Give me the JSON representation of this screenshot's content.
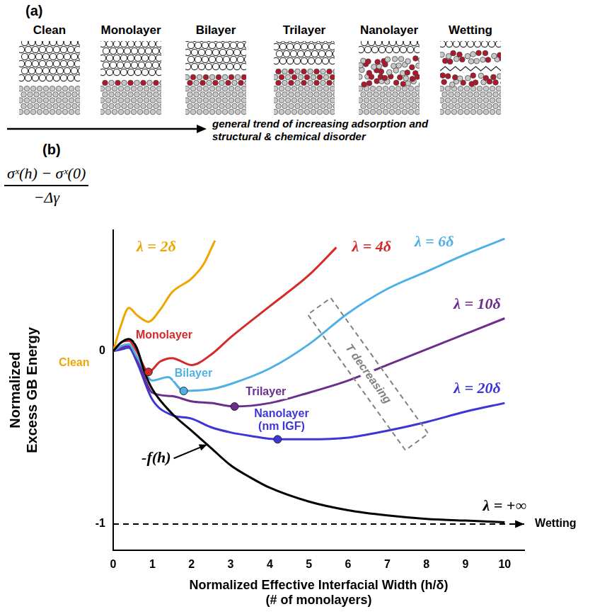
{
  "panel_a": {
    "label": "(a)",
    "columns": [
      "Clean",
      "Monolayer",
      "Bilayer",
      "Trilayer",
      "Nanolayer",
      "Wetting"
    ],
    "arrow_text": [
      "general trend of increasing adsorption and",
      "structural & chemical disorder"
    ]
  },
  "panel_b": {
    "label": "(b)",
    "y_formula": {
      "numerator": "σˣ(h) − σˣ(0)",
      "denominator": "−Δγ"
    }
  },
  "chart_data": {
    "type": "line",
    "xlabel": [
      "Normalized Effective Interfacial Width (h/δ)",
      "(# of monolayers)"
    ],
    "ylabel": [
      "Normalized",
      "Excess GB Energy"
    ],
    "xlim": [
      0,
      10.5
    ],
    "xticks": [
      0,
      1,
      2,
      3,
      4,
      5,
      6,
      7,
      8,
      9,
      10
    ],
    "ylim": [
      -1.15,
      0.7
    ],
    "yticks": [
      -1,
      0
    ],
    "grid": false,
    "series": [
      {
        "name": "-f(h)",
        "color": "#000000",
        "line_style": "solid",
        "marker": "none",
        "x": [
          0,
          0.2,
          0.4,
          0.6,
          0.8,
          1,
          1.5,
          2,
          2.5,
          3,
          3.5,
          4,
          5,
          6,
          7,
          8,
          9,
          10
        ],
        "values": [
          0,
          0.05,
          0.07,
          0.02,
          -0.12,
          -0.22,
          -0.36,
          -0.46,
          -0.56,
          -0.66,
          -0.73,
          -0.79,
          -0.87,
          -0.92,
          -0.95,
          -0.97,
          -0.98,
          -0.99
        ],
        "label_at": {
          "x": 1.1,
          "y": -0.62
        },
        "label_arrow_to": {
          "x": 2.4,
          "y": -0.54
        }
      },
      {
        "name": "λ = 2δ",
        "color": "#f0a500",
        "line_style": "solid",
        "marker": "none",
        "x": [
          0,
          0.2,
          0.4,
          0.6,
          0.9,
          1.2,
          1.5,
          2,
          2.3,
          2.6
        ],
        "values": [
          0,
          0.15,
          0.25,
          0.21,
          0.17,
          0.24,
          0.34,
          0.42,
          0.5,
          0.64
        ],
        "label_at": {
          "x": 1.1,
          "y": 0.6
        }
      },
      {
        "name": "λ = 4δ",
        "color": "#d42a2a",
        "line_style": "solid",
        "marker": "none",
        "x": [
          0,
          0.2,
          0.4,
          0.6,
          0.9,
          1.2,
          1.5,
          2,
          2.5,
          3,
          4,
          5,
          5.7
        ],
        "values": [
          0,
          0.05,
          0.06,
          0,
          -0.12,
          -0.06,
          -0.04,
          -0.08,
          -0.02,
          0.08,
          0.26,
          0.44,
          0.6
        ],
        "label_at": {
          "x": 6.6,
          "y": 0.6
        }
      },
      {
        "name": "λ = 6δ",
        "color": "#4fb0e6",
        "line_style": "solid",
        "marker": "none",
        "x": [
          0,
          0.2,
          0.4,
          0.6,
          1,
          1.4,
          1.8,
          2.5,
          3,
          4,
          5,
          6,
          7,
          8,
          9,
          10
        ],
        "values": [
          0,
          0.03,
          0.04,
          -0.03,
          -0.17,
          -0.15,
          -0.23,
          -0.22,
          -0.19,
          -0.1,
          0.04,
          0.22,
          0.36,
          0.46,
          0.56,
          0.65
        ],
        "label_at": {
          "x": 8.2,
          "y": 0.63
        }
      },
      {
        "name": "λ = 10δ",
        "color": "#6b2e8f",
        "line_style": "solid",
        "marker": "none",
        "x": [
          0,
          0.2,
          0.4,
          0.6,
          1,
          1.5,
          2,
          2.5,
          3.1,
          4,
          5,
          6,
          7,
          8,
          9,
          10
        ],
        "values": [
          0,
          0.02,
          0.03,
          -0.04,
          -0.24,
          -0.26,
          -0.29,
          -0.3,
          -0.32,
          -0.3,
          -0.24,
          -0.17,
          -0.08,
          0.01,
          0.1,
          0.19
        ],
        "label_at": {
          "x": 9.3,
          "y": 0.27
        }
      },
      {
        "name": "λ = 20δ",
        "color": "#3d35d8",
        "line_style": "solid",
        "marker": "none",
        "x": [
          0,
          0.2,
          0.4,
          0.6,
          1,
          1.5,
          2,
          2.5,
          3,
          3.5,
          4.2,
          5,
          6,
          7,
          8,
          9,
          10
        ],
        "values": [
          0,
          0.01,
          0.02,
          -0.06,
          -0.28,
          -0.37,
          -0.39,
          -0.44,
          -0.47,
          -0.49,
          -0.51,
          -0.51,
          -0.5,
          -0.46,
          -0.41,
          -0.35,
          -0.3
        ],
        "label_at": {
          "x": 9.3,
          "y": -0.22
        }
      },
      {
        "name": "λ = +∞",
        "color": "#000000",
        "line_style": "dashed",
        "marker": "arrow",
        "x": [
          0,
          10.5
        ],
        "values": [
          -1,
          -1
        ],
        "label_at": {
          "x": 10.0,
          "y": -0.9
        }
      }
    ],
    "markers": [
      {
        "x": 0.9,
        "y": -0.12,
        "color": "#d42a2a"
      },
      {
        "x": 1.8,
        "y": -0.23,
        "color": "#4fb0e6"
      },
      {
        "x": 3.1,
        "y": -0.32,
        "color": "#6b2e8f"
      },
      {
        "x": 4.2,
        "y": -0.51,
        "color": "#3d35d8"
      }
    ],
    "annotations": [
      {
        "text": "Clean",
        "x": -1.0,
        "y": -0.07,
        "color": "#f0a500"
      },
      {
        "text": "Monolayer",
        "x": 1.3,
        "y": 0.09,
        "color": "#d42a2a"
      },
      {
        "text": "Bilayer",
        "x": 2.05,
        "y": -0.13,
        "color": "#4fb0e6"
      },
      {
        "text": "Trilayer",
        "x": 3.9,
        "y": -0.235,
        "color": "#6b2e8f"
      },
      {
        "text": [
          "Nanolayer",
          "(nm IGF)"
        ],
        "x": 4.3,
        "y": -0.4,
        "color": "#3d35d8"
      },
      {
        "text": "Wetting",
        "x": 11.3,
        "y": -1,
        "color": "#000000"
      }
    ],
    "box_annotation": {
      "text": "T decreasing",
      "color": "#808080"
    }
  }
}
